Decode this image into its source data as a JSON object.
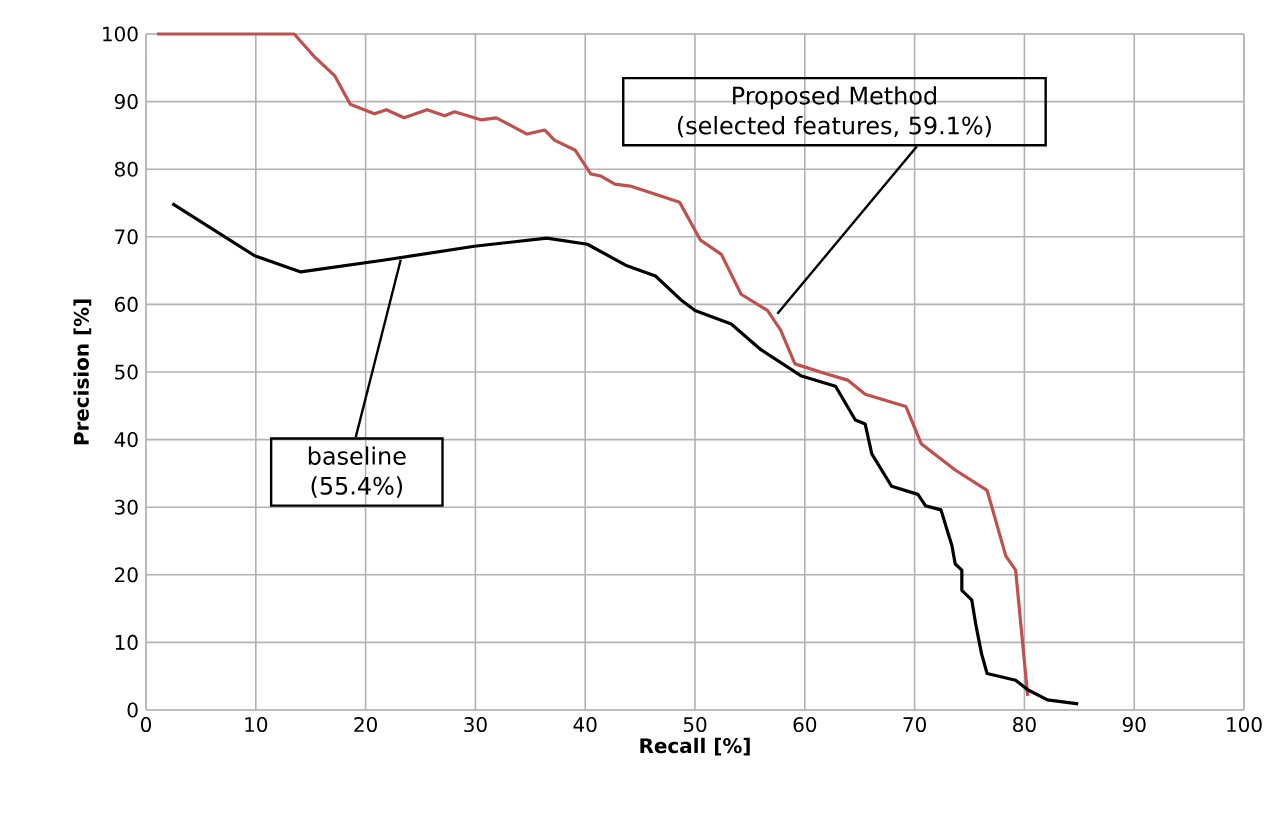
{
  "chart_data": {
    "type": "line",
    "xlabel": "Recall [%]",
    "ylabel": "Precision [%]",
    "xlim": [
      0,
      100
    ],
    "ylim": [
      0,
      100
    ],
    "xticks": [
      0,
      10,
      20,
      30,
      40,
      50,
      60,
      70,
      80,
      90,
      100
    ],
    "yticks": [
      0,
      10,
      20,
      30,
      40,
      50,
      60,
      70,
      80,
      90,
      100
    ],
    "grid": true,
    "marker": "none",
    "line_style": "solid",
    "series": [
      {
        "color": "#c0504d",
        "x": [
          1,
          13.5,
          15.3,
          17.2,
          18.6,
          20.8,
          21.9,
          23.5,
          25.6,
          27.2,
          28.1,
          30.5,
          31.9,
          34.7,
          36.3,
          37.2,
          39.1,
          40.5,
          41.4,
          42.7,
          44.1,
          46.4,
          48.6,
          50.5,
          52.4,
          54.2,
          56.6,
          57.8,
          59.1,
          62,
          63.9,
          65.5,
          69.2,
          70.6,
          73.7,
          76.6,
          78.3,
          79.2,
          80.3
        ],
        "values": [
          100,
          100,
          96.7,
          93.8,
          89.6,
          88.2,
          88.8,
          87.6,
          88.8,
          87.9,
          88.5,
          87.3,
          87.6,
          85.2,
          85.8,
          84.3,
          82.8,
          79.3,
          79,
          77.8,
          77.5,
          76.3,
          75.1,
          69.5,
          67.4,
          61.5,
          59.1,
          56.2,
          51.2,
          49.7,
          48.8,
          46.7,
          44.9,
          39.4,
          35.5,
          32.5,
          22.8,
          20.7,
          2.1
        ]
      },
      {
        "color": "#000000",
        "x": [
          2.4,
          9.9,
          14.1,
          21.9,
          29.9,
          36.5,
          40.2,
          43.8,
          46.4,
          48.7,
          50,
          53.3,
          56,
          59.7,
          62.8,
          64.6,
          65.5,
          66.1,
          67.9,
          70.3,
          71,
          72.4,
          73.4,
          73.7,
          74.3,
          74.3,
          75.2,
          75.6,
          76.1,
          76.6,
          79.2,
          80.3,
          82.1,
          84.9
        ],
        "values": [
          74.9,
          67.2,
          64.8,
          66.6,
          68.6,
          69.8,
          68.9,
          65.7,
          64.2,
          60.7,
          59.1,
          57.1,
          53.3,
          49.4,
          47.9,
          42.9,
          42.3,
          37.9,
          33.1,
          31.9,
          30.2,
          29.6,
          24.3,
          21.6,
          20.7,
          17.7,
          16.3,
          12.4,
          8.3,
          5.4,
          4.4,
          3,
          1.5,
          0.9
        ]
      }
    ],
    "annotations": [
      {
        "text": "Proposed Method (selected features, 59.1%)",
        "x": 57.5,
        "y": 58.6
      },
      {
        "text": "baseline (55.4%)",
        "x": 23.2,
        "y": 66.6
      }
    ]
  }
}
